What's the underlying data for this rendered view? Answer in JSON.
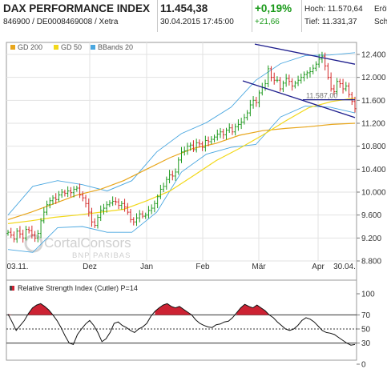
{
  "header": {
    "title": "DAX PERFORMANCE INDEX",
    "isin_line": "846900 / DE0008469008 / Xetra",
    "price": "11.454,38",
    "datetime": "30.04.2015 17:45:00",
    "change_pct": "+0,19%",
    "change_abs": "+21,66",
    "high_label": "Hoch:",
    "high_value": "11.570,64",
    "open_label": "Eröf",
    "low_label": "Tief:",
    "low_value": "11.331,37",
    "close_label": "Sch"
  },
  "watermark": {
    "line1": "CortalConsors",
    "line2": "BNP PARIBAS"
  },
  "colors": {
    "candle_up": "#1f9a1f",
    "candle_down": "#d42a2a",
    "gd200": "#e8a61c",
    "gd50": "#f2d81a",
    "bbands": "#4aa7e0",
    "trendline": "#1c1c8c",
    "rsi_fill": "#cc2233",
    "change_positive": "#1a9a1a"
  },
  "chart_data": [
    {
      "type": "candlestick",
      "legend": [
        "GD 200",
        "GD 50",
        "BBands 20"
      ],
      "x_ticks": [
        "03.11.",
        "Dez",
        "Jan",
        "Feb",
        "Mär",
        "Apr",
        "30.04."
      ],
      "y_ticks": [
        "12.400",
        "12.000",
        "11.600",
        "11.200",
        "10.800",
        "10.400",
        "10.000",
        "9.600",
        "9.200",
        "8.800"
      ],
      "ylim": [
        8800,
        12500
      ],
      "price_label": "11.587,00",
      "series": [
        {
          "name": "Close",
          "values": [
            9300,
            9250,
            9180,
            9320,
            9270,
            9200,
            9350,
            9330,
            9250,
            9200,
            9280,
            9500,
            9650,
            9780,
            9850,
            9900,
            9870,
            9950,
            10000,
            9980,
            10020,
            9990,
            10050,
            10070,
            9950,
            9900,
            9800,
            9650,
            9480,
            9420,
            9560,
            9680,
            9720,
            9780,
            9810,
            9840,
            9830,
            9770,
            9800,
            9740,
            9650,
            9520,
            9480,
            9550,
            9620,
            9580,
            9600,
            9680,
            9720,
            9800,
            9920,
            10050,
            10100,
            10220,
            10300,
            10280,
            10350,
            10560,
            10700,
            10720,
            10800,
            10820,
            10740,
            10860,
            10840,
            10780,
            10900,
            10880,
            10920,
            10960,
            11010,
            11050,
            11000,
            11080,
            11120,
            11050,
            11140,
            11180,
            11220,
            11300,
            11380,
            11520,
            11600,
            11560,
            11730,
            11820,
            11890,
            12150,
            12000,
            11950,
            11950,
            11800,
            11900,
            11980,
            11930,
            11850,
            11900,
            11950,
            12000,
            12050,
            12080,
            12100,
            12160,
            12230,
            12320,
            12370,
            12200,
            12000,
            11800,
            11750,
            11930,
            11890,
            11800,
            11850,
            11700,
            11580,
            11454
          ]
        },
        {
          "name": "GD 200",
          "values": [
            9520,
            9650,
            9800,
            9950,
            10050,
            10200,
            10400,
            10600,
            10760,
            10850,
            10990,
            11070,
            11110,
            11140,
            11180,
            11200
          ]
        },
        {
          "name": "GD 50",
          "values": [
            9450,
            9500,
            9560,
            9600,
            9650,
            9700,
            9850,
            10020,
            10280,
            10550,
            10760,
            10990,
            11240,
            11470,
            11580,
            11640
          ]
        },
        {
          "name": "BBands 20 upper",
          "values": [
            9600,
            10100,
            10200,
            10130,
            10020,
            10200,
            10700,
            11020,
            11210,
            11480,
            11950,
            12240,
            12380,
            12390,
            12430
          ]
        },
        {
          "name": "BBands 20 lower",
          "values": [
            9000,
            8950,
            9380,
            9400,
            9300,
            9300,
            9650,
            10350,
            10660,
            10780,
            10830,
            11310,
            11500,
            11480,
            11380
          ]
        }
      ]
    },
    {
      "type": "line",
      "title": "Relative Strength Index (Cutler) P=14",
      "y_ticks": [
        "100",
        "70",
        "50",
        "30",
        "0"
      ],
      "ylim": [
        0,
        100
      ],
      "series": [
        {
          "name": "RSI",
          "values": [
            71,
            60,
            48,
            55,
            62,
            72,
            80,
            84,
            86,
            82,
            77,
            70,
            62,
            52,
            40,
            30,
            28,
            42,
            50,
            57,
            62,
            55,
            45,
            32,
            36,
            45,
            58,
            60,
            55,
            52,
            48,
            45,
            50,
            53,
            58,
            68,
            75,
            80,
            84,
            86,
            82,
            80,
            82,
            78,
            74,
            70,
            63,
            58,
            55,
            53,
            52,
            56,
            57,
            60,
            61,
            66,
            73,
            80,
            85,
            82,
            80,
            84,
            80,
            76,
            70,
            66,
            60,
            55,
            50,
            48,
            50,
            55,
            62,
            66,
            64,
            60,
            54,
            48,
            45,
            44,
            42,
            38,
            34,
            30,
            27,
            28
          ]
        }
      ]
    }
  ]
}
